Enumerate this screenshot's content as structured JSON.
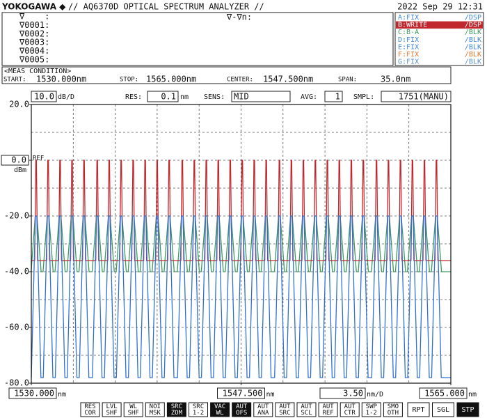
{
  "header": {
    "brand": "YOKOGAWA ◆",
    "title": "// AQ6370D OPTICAL SPECTRUM ANALYZER //",
    "datetime": "2022 Sep 29 12:31"
  },
  "markers": {
    "rows": [
      "∇    :",
      "∇0001:",
      "∇0002:",
      "∇0003:",
      "∇0004:",
      "∇0005:"
    ],
    "delta": "∇-∇n:"
  },
  "traces": [
    {
      "label": "A:FIX",
      "mode": "/DSP",
      "color": "#3c86d8",
      "selected": false
    },
    {
      "label": "B:WRITE",
      "mode": "/DSP",
      "color": "#c0282d",
      "selected": true
    },
    {
      "label": "C:B-A",
      "mode": "/BLK",
      "color": "#3c9a5c",
      "selected": false
    },
    {
      "label": "D:FIX",
      "mode": "/BLK",
      "color": "#3c86d8",
      "selected": false
    },
    {
      "label": "E:FIX",
      "mode": "/BLK",
      "color": "#3c86d8",
      "selected": false
    },
    {
      "label": "F:FIX",
      "mode": "/BLK",
      "color": "#e0742c",
      "selected": false
    },
    {
      "label": "G:FIX",
      "mode": "/BLK",
      "color": "#5b8fc4",
      "selected": false
    }
  ],
  "meas_condition": {
    "title": "<MEAS CONDITION>",
    "start_label": "START:",
    "start": "1530.000nm",
    "stop_label": "STOP:",
    "stop": "1565.000nm",
    "center_label": "CENTER:",
    "center": "1547.500nm",
    "span_label": "SPAN:",
    "span": "35.0nm"
  },
  "settings": {
    "res_label": "RES:",
    "res": "0.1",
    "res_unit": "nm",
    "sens_label": "SENS:",
    "sens": "MID",
    "avg_label": "AVG:",
    "avg": "1",
    "smpl_label": "SMPL:",
    "smpl": "1751(MANU)"
  },
  "softkeys": [
    {
      "top": "RES",
      "bottom": "COR",
      "active": false
    },
    {
      "top": "LVL",
      "bottom": "SHF",
      "active": false
    },
    {
      "top": "WL",
      "bottom": "SHF",
      "active": false
    },
    {
      "top": "NOI",
      "bottom": "MSK",
      "active": false
    },
    {
      "top": "SRC",
      "bottom": "ZOM",
      "active": true
    },
    {
      "top": "SRC",
      "bottom": "1-2",
      "active": false
    },
    {
      "top": "VAC",
      "bottom": "WL",
      "active": true
    },
    {
      "top": "AUT",
      "bottom": "OFS",
      "active": true
    },
    {
      "top": "AUT",
      "bottom": "ANA",
      "active": false
    },
    {
      "top": "AUT",
      "bottom": "SRC",
      "active": false
    },
    {
      "top": "AUT",
      "bottom": "SCL",
      "active": false
    },
    {
      "top": "AUT",
      "bottom": "REF",
      "active": false
    },
    {
      "top": "AUT",
      "bottom": "CTR",
      "active": false
    },
    {
      "top": "SWP",
      "bottom": "1-2",
      "active": false
    },
    {
      "top": "SMO",
      "bottom": "OTH",
      "active": false
    }
  ],
  "sweep_keys": [
    {
      "label": "RPT",
      "active": false
    },
    {
      "label": "SGL",
      "active": false
    },
    {
      "label": "STP",
      "active": true
    }
  ],
  "chart_data": {
    "type": "spectrum",
    "xlim": [
      1530,
      1565
    ],
    "xticks": [
      {
        "value": 1530,
        "label": "1530.000"
      },
      {
        "value": 1547.5,
        "label": "1547.500"
      },
      {
        "value": 1565,
        "label": "1565.000"
      }
    ],
    "x_unit": "nm",
    "x_div": {
      "value": 3.5,
      "label": "3.50"
    },
    "x_div_unit": "nm/D",
    "ylim": [
      -80,
      20
    ],
    "yticks": [
      {
        "value": 20,
        "label": "20.0"
      },
      {
        "value": 0,
        "label": "0.0"
      },
      {
        "value": -20,
        "label": "-20.0"
      },
      {
        "value": -40,
        "label": "-40.0"
      },
      {
        "value": -60,
        "label": "-60.0"
      },
      {
        "value": -80,
        "label": "-80.0"
      }
    ],
    "y_div": {
      "value": 10,
      "label": "10.0"
    },
    "y_div_unit": "dB/D",
    "y_unit": "dBm",
    "ref_label": "REF",
    "grid": true,
    "peaks": [
      1530.4,
      1531.4,
      1532.4,
      1533.4,
      1534.4,
      1535.5,
      1536.5,
      1537.5,
      1538.5,
      1539.5,
      1540.5,
      1541.5,
      1542.6,
      1543.6,
      1544.6,
      1545.6,
      1546.6,
      1547.6,
      1548.6,
      1549.6,
      1550.7,
      1551.7,
      1552.7,
      1553.7,
      1554.7,
      1555.7,
      1556.7,
      1557.7,
      1558.8,
      1559.8,
      1560.8,
      1561.8,
      1562.8,
      1563.8
    ],
    "series": [
      {
        "color": "#3c9a5c",
        "peak_level": -20,
        "floor_level": -40
      },
      {
        "color": "#c0282d",
        "peak_level": 0,
        "floor_level": -36
      },
      {
        "color": "#2f6fd6",
        "peak_level": -20,
        "floor_level": -78
      }
    ]
  }
}
